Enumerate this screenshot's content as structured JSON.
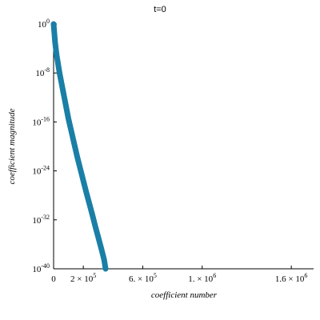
{
  "chart_data": {
    "type": "scatter",
    "title": "t=0",
    "xlabel": "coefficient number",
    "ylabel": "coefficient magnitude",
    "xlim": [
      0,
      1750000
    ],
    "ylim": [
      1e-40,
      1
    ],
    "y_scale": "log",
    "grid": false,
    "legend": "none",
    "x_tick_labels": [
      "0",
      "2 × 10",
      "6. × 10",
      "1. × 10",
      "1.6 × 10"
    ],
    "x_tick_exponents": [
      "",
      "5",
      "5",
      "6",
      "6"
    ],
    "x_ticks": [
      0,
      200000,
      600000,
      1000000,
      1600000
    ],
    "y_tick_labels": [
      "10",
      "10",
      "10",
      "10",
      "10",
      "10"
    ],
    "y_tick_exponents": [
      "0",
      "-8",
      "-16",
      "-24",
      "-32",
      "-40"
    ],
    "y_ticks_log10": [
      0,
      -8,
      -16,
      -24,
      -32,
      -40
    ],
    "series": [
      {
        "color": "#1a7fa6",
        "x": [
          0,
          5000,
          10000,
          20000,
          40000,
          60000,
          80000,
          100000,
          120000,
          140000,
          160000,
          180000,
          200000,
          220000,
          240000,
          260000,
          280000,
          300000,
          320000,
          340000,
          350000
        ],
        "log10_y": [
          0,
          -1.5,
          -3,
          -5,
          -8,
          -10.5,
          -13,
          -15.5,
          -17.6,
          -19.7,
          -21.8,
          -23.7,
          -25.6,
          -27.5,
          -29.3,
          -31.1,
          -33,
          -34.8,
          -36.6,
          -38.5,
          -40
        ]
      }
    ]
  }
}
